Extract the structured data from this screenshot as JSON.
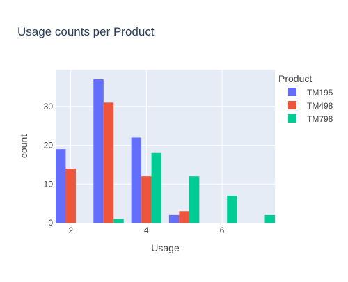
{
  "chart_data": {
    "type": "bar",
    "title": "Usage counts per Product",
    "xlabel": "Usage",
    "ylabel": "count",
    "categories": [
      2,
      3,
      4,
      5,
      6,
      7
    ],
    "x_ticks": [
      2,
      4,
      6
    ],
    "xlim": [
      1.6,
      7.4
    ],
    "y_ticks": [
      0,
      10,
      20,
      30
    ],
    "ylim": [
      0,
      39.5
    ],
    "grid": true,
    "legend": {
      "title": "Product",
      "position": "right"
    },
    "series": [
      {
        "name": "TM195",
        "color": "#636efa",
        "values": [
          19,
          37,
          22,
          2,
          0,
          0
        ]
      },
      {
        "name": "TM498",
        "color": "#ef553b",
        "values": [
          14,
          31,
          12,
          3,
          0,
          0
        ]
      },
      {
        "name": "TM798",
        "color": "#00cc96",
        "values": [
          0,
          1,
          18,
          12,
          7,
          2
        ]
      }
    ],
    "plot_bgcolor": "#e5ecf6",
    "gridcolor": "#ffffff",
    "text_color": "#444444",
    "title_color": "#2a3f5f"
  }
}
